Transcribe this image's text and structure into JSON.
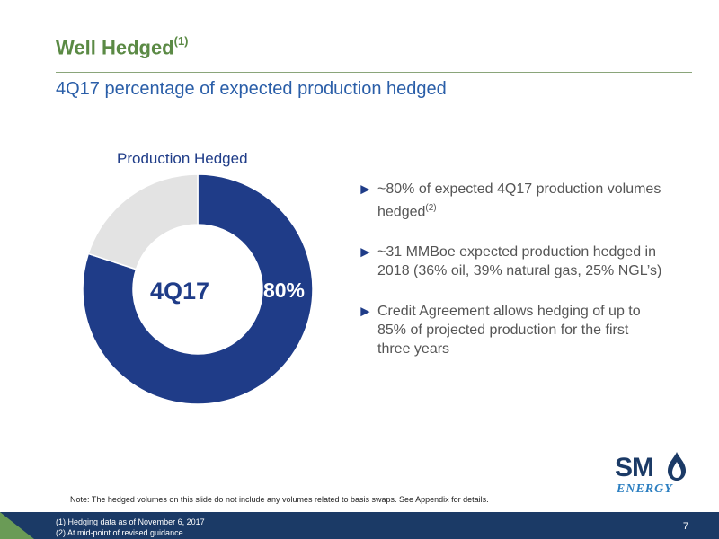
{
  "header": {
    "title": "Well Hedged",
    "title_superscript": "(1)",
    "subtitle": "4Q17 percentage of expected production hedged"
  },
  "chart_data": {
    "type": "pie",
    "title": "Production Hedged",
    "center_label": "4Q17",
    "slices": [
      {
        "label": "Hedged",
        "value": 80,
        "color": "#1f3c88",
        "data_label": "80%"
      },
      {
        "label": "Unhedged",
        "value": 20,
        "color": "#e3e3e3"
      }
    ]
  },
  "bullets": [
    {
      "text": "~80% of expected 4Q17 production volumes hedged",
      "sup": "(2)"
    },
    {
      "text": "~31 MMBoe expected production hedged in 2018 (36% oil, 39% natural gas, 25% NGL’s)",
      "sup": ""
    },
    {
      "text": "Credit Agreement allows hedging of up to 85% of projected production for the first three years",
      "sup": ""
    }
  ],
  "note": "Note: The hedged volumes on this slide do not include any volumes related to basis swaps.  See Appendix for details.",
  "footnotes": [
    "(1)   Hedging data as of November 6, 2017",
    "(2)   At mid-point of revised guidance"
  ],
  "page_number": "7",
  "logo": {
    "line1": "SM",
    "line2": "ENERGY"
  },
  "bullet_icon": "triangle-right-icon"
}
